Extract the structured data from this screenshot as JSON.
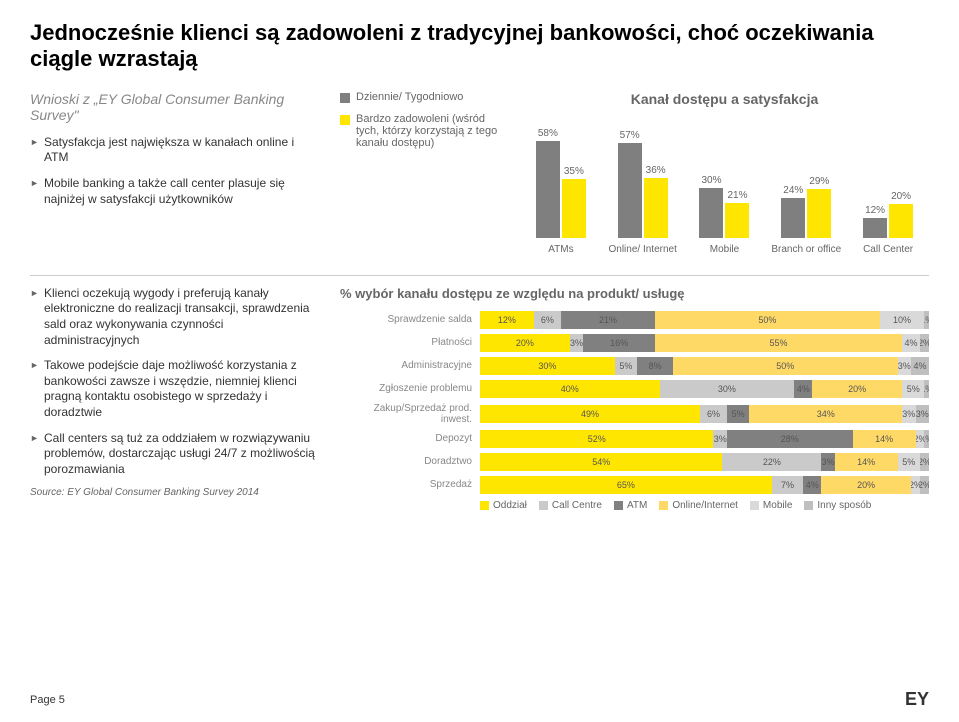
{
  "title": "Jednocześnie klienci są zadowoleni z tradycyjnej bankowości, choć oczekiwania ciągle wzrastają",
  "subtitle": "Wnioski z „EY Global Consumer Banking Survey\"",
  "bullets1": [
    "Satysfakcja jest największa w kanałach online i ATM",
    "Mobile banking a także call center plasuje się najniżej w satysfakcji użytkowników"
  ],
  "chart1": {
    "title": "Kanał dostępu a satysfakcja",
    "legend": [
      {
        "label": "Dziennie/ Tygodniowo",
        "color": "#7f7f7f"
      },
      {
        "label": "Bardzo zadowoleni (wśród tych, którzy korzystają z tego kanału dostępu)",
        "color": "#ffe600"
      }
    ],
    "maxValue": 60,
    "categories": [
      {
        "label": "ATMs",
        "v1": 58,
        "v2": 35
      },
      {
        "label": "Online/ Internet",
        "v1": 57,
        "v2": 36
      },
      {
        "label": "Mobile",
        "v1": 30,
        "v2": 21
      },
      {
        "label": "Branch or office",
        "v1": 24,
        "v2": 29
      },
      {
        "label": "Call Center",
        "v1": 12,
        "v2": 20
      }
    ],
    "color1": "#7f7f7f",
    "color2": "#ffe600"
  },
  "bullets2": [
    "Klienci oczekują wygody i preferują kanały elektroniczne do realizacji transakcji, sprawdzenia sald oraz wykonywania czynności administracyjnych",
    "Takowe podejście daje możliwość korzystania z bankowości zawsze i wszędzie, niemniej klienci pragną kontaktu osobistego w sprzedaży i doradztwie",
    "Call centers są tuż za oddziałem w rozwiązywaniu problemów, dostarczając usługi 24/7 z możliwością porozmawiania"
  ],
  "chart2": {
    "title": "% wybór kanału dostępu ze względu na produkt/ usługę",
    "rows": [
      {
        "label": "Sprawdzenie salda",
        "segs": [
          12,
          6,
          21,
          50,
          10,
          1
        ]
      },
      {
        "label": "Płatności",
        "segs": [
          20,
          3,
          16,
          55,
          4,
          2
        ]
      },
      {
        "label": "Administracyjne",
        "segs": [
          30,
          5,
          8,
          50,
          3,
          4
        ]
      },
      {
        "label": "Zgłoszenie problemu",
        "segs": [
          40,
          30,
          4,
          20,
          5,
          1
        ]
      },
      {
        "label": "Zakup/Sprzedaż prod. inwest.",
        "segs": [
          49,
          6,
          5,
          34,
          3,
          3
        ]
      },
      {
        "label": "Depozyt",
        "segs": [
          52,
          3,
          28,
          14,
          2,
          1
        ]
      },
      {
        "label": "Doradztwo",
        "segs": [
          54,
          22,
          3,
          14,
          5,
          2
        ]
      },
      {
        "label": "Sprzedaż",
        "segs": [
          65,
          7,
          4,
          20,
          2,
          2
        ]
      }
    ],
    "colors": [
      "#ffe600",
      "#cacaca",
      "#808080",
      "#ffd966",
      "#d9d9d9",
      "#bfbfbf"
    ],
    "legend": [
      "Oddział",
      "Call Centre",
      "ATM",
      "Online/Internet",
      "Mobile",
      "Inny sposób"
    ]
  },
  "source": "Source: EY Global Consumer Banking Survey 2014",
  "page": "Page 5",
  "logo": "EY"
}
